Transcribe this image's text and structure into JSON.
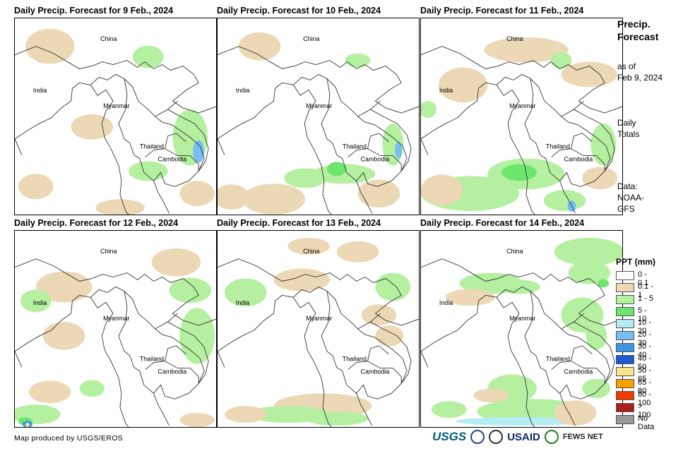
{
  "panels": [
    {
      "title": "Daily Precip. Forecast for 9 Feb., 2024"
    },
    {
      "title": "Daily Precip. Forecast for 10 Feb., 2024"
    },
    {
      "title": "Daily Precip. Forecast for 11 Feb., 2024"
    },
    {
      "title": "Daily Precip. Forecast for 12 Feb., 2024"
    },
    {
      "title": "Daily Precip. Forecast for 13 Feb., 2024"
    },
    {
      "title": "Daily Precip. Forecast for 14 Feb., 2024"
    }
  ],
  "map_labels": {
    "china": "China",
    "india": "India",
    "myanmar": "Myanmar",
    "thailand": "Thailand",
    "cambodia": "Cambodia"
  },
  "side": {
    "heading_line1": "Precip.",
    "heading_line2": "Forecast",
    "asof_line1": "as of",
    "asof_line2": "Feb 9, 2024",
    "totals_line1": "Daily",
    "totals_line2": "Totals",
    "data_line1": "Data:",
    "data_line2": "NOAA-",
    "data_line3": "GFS"
  },
  "legend": {
    "title": "PPT (mm)",
    "items": [
      {
        "label": "0 - 0.1",
        "color": "#ffffff"
      },
      {
        "label": "0.1 - 1",
        "color": "#ecd8b4"
      },
      {
        "label": "1 - 5",
        "color": "#b4f0a0"
      },
      {
        "label": "5 - 10",
        "color": "#6ee66e"
      },
      {
        "label": "10 - 20",
        "color": "#b4ecf4"
      },
      {
        "label": "20 - 30",
        "color": "#78bef0"
      },
      {
        "label": "30 - 40",
        "color": "#3c96e6"
      },
      {
        "label": "40 - 50",
        "color": "#1e5ad2"
      },
      {
        "label": "50 - 65",
        "color": "#f8e68c"
      },
      {
        "label": "65 - 80",
        "color": "#f8a000"
      },
      {
        "label": "80 - 100",
        "color": "#f03c00"
      },
      {
        "label": "> 100",
        "color": "#aa1e1e"
      },
      {
        "label": "No Data",
        "color": "#999999"
      }
    ]
  },
  "footer": {
    "credit": "Map produced by USGS/EROS"
  },
  "logos": {
    "usgs": "USGS",
    "usaid": "USAID",
    "fews": "FEWS NET"
  }
}
